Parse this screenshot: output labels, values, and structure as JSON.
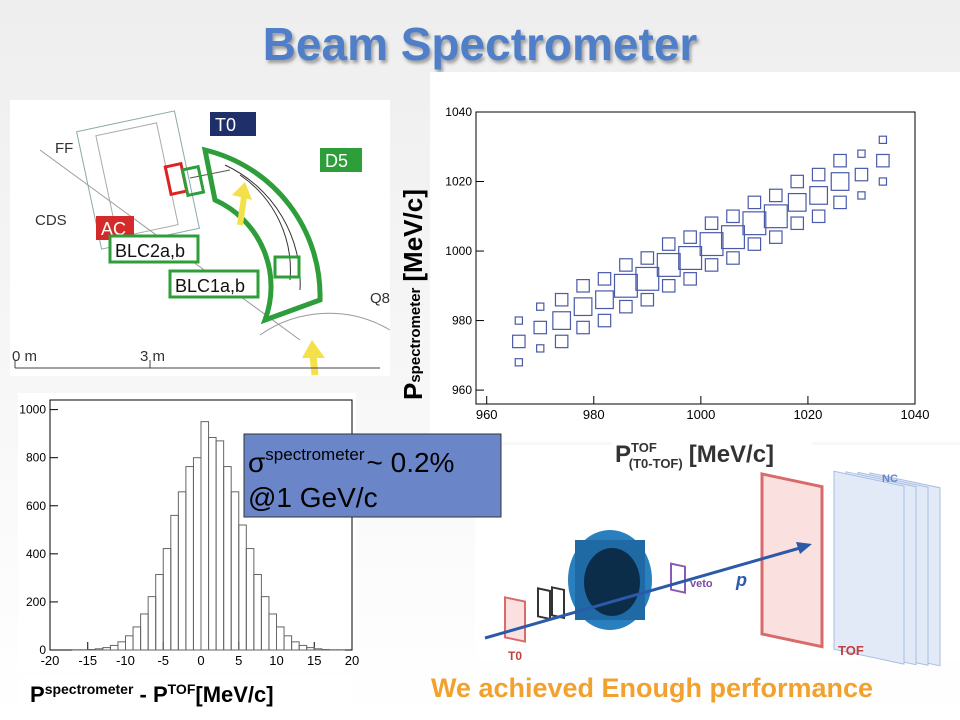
{
  "title": "Beam Spectrometer",
  "chart_data": [
    {
      "type": "scatter",
      "y_label": {
        "main": "P",
        "sub": "spectrometer",
        "unit": "[MeV/c]"
      },
      "x_label": {
        "main": "P",
        "sup": "TOF",
        "sub": "(T0-TOF)",
        "unit": "[MeV/c]"
      },
      "xlim": [
        958,
        1040
      ],
      "ylim": [
        956,
        1040
      ],
      "xticks": [
        960,
        980,
        1000,
        1020,
        1040
      ],
      "yticks": [
        960,
        980,
        1000,
        1020,
        1040
      ],
      "color": "#4a5aa8",
      "x": [
        966,
        966,
        966,
        970,
        970,
        970,
        974,
        974,
        974,
        978,
        978,
        978,
        982,
        982,
        982,
        986,
        986,
        986,
        990,
        990,
        990,
        994,
        994,
        994,
        998,
        998,
        998,
        1002,
        1002,
        1002,
        1006,
        1006,
        1006,
        1010,
        1010,
        1010,
        1014,
        1014,
        1014,
        1018,
        1018,
        1018,
        1022,
        1022,
        1022,
        1026,
        1026,
        1026,
        1030,
        1030,
        1030,
        1034,
        1034,
        1034
      ],
      "y": [
        968,
        974,
        980,
        972,
        978,
        984,
        974,
        980,
        986,
        978,
        984,
        990,
        980,
        986,
        992,
        984,
        990,
        996,
        986,
        992,
        998,
        990,
        996,
        1002,
        992,
        998,
        1004,
        996,
        1002,
        1008,
        998,
        1004,
        1010,
        1002,
        1008,
        1014,
        1004,
        1010,
        1016,
        1008,
        1014,
        1020,
        1010,
        1016,
        1022,
        1014,
        1020,
        1026,
        1016,
        1022,
        1028,
        1020,
        1026,
        1032
      ],
      "sizes": [
        1,
        2,
        1,
        1,
        2,
        1,
        2,
        3,
        2,
        2,
        3,
        2,
        2,
        3,
        2,
        2,
        4,
        2,
        2,
        4,
        2,
        2,
        4,
        2,
        2,
        4,
        2,
        2,
        4,
        2,
        2,
        4,
        2,
        2,
        4,
        2,
        2,
        4,
        2,
        2,
        3,
        2,
        2,
        3,
        2,
        2,
        3,
        2,
        1,
        2,
        1,
        1,
        2,
        1
      ]
    },
    {
      "type": "histogram",
      "bins": [
        -20,
        -19,
        -18,
        -17,
        -16,
        -15,
        -14,
        -13,
        -12,
        -11,
        -10,
        -9,
        -8,
        -7,
        -6,
        -5,
        -4,
        -3,
        -2,
        -1,
        0,
        1,
        2,
        3,
        4,
        5,
        6,
        7,
        8,
        9,
        10,
        11,
        12,
        13,
        14,
        15,
        16,
        17,
        18,
        19,
        20
      ],
      "counts": [
        0,
        0,
        0,
        1,
        1,
        2,
        5,
        10,
        19,
        34,
        59,
        96,
        150,
        222,
        314,
        422,
        560,
        658,
        763,
        800,
        950,
        884,
        870,
        763,
        658,
        520,
        422,
        314,
        222,
        150,
        96,
        59,
        34,
        19,
        10,
        5,
        2,
        1,
        1,
        0
      ],
      "xlim": [
        -20,
        20
      ],
      "ylim": [
        0,
        1040
      ],
      "xticks": [
        -20,
        -15,
        -10,
        -5,
        0,
        5,
        10,
        15,
        20
      ],
      "yticks": [
        0,
        200,
        400,
        600,
        800,
        1000
      ],
      "color": "#666666"
    }
  ],
  "annotation": {
    "symbol": "σ",
    "sup": "spectrometer",
    "value": "~ 0.2%",
    "line2": "@1 GeV/c"
  },
  "bottom_label": {
    "p1": "P",
    "sup1": "spectrometer",
    "minus": " - P",
    "sup2": "TOF",
    "unit": "[MeV/c]"
  },
  "diagrams": {
    "beamline": {
      "labels": [
        "T0",
        "D5",
        "FF",
        "CDS",
        "AC",
        "BLC2a,b",
        "BLC1a,b",
        "Q8",
        "0 m",
        "3 m"
      ]
    },
    "detector": {
      "labels": [
        "NC",
        "TOF",
        "p",
        "veto",
        "T0"
      ]
    }
  },
  "footer": "We achieved Enough performance"
}
